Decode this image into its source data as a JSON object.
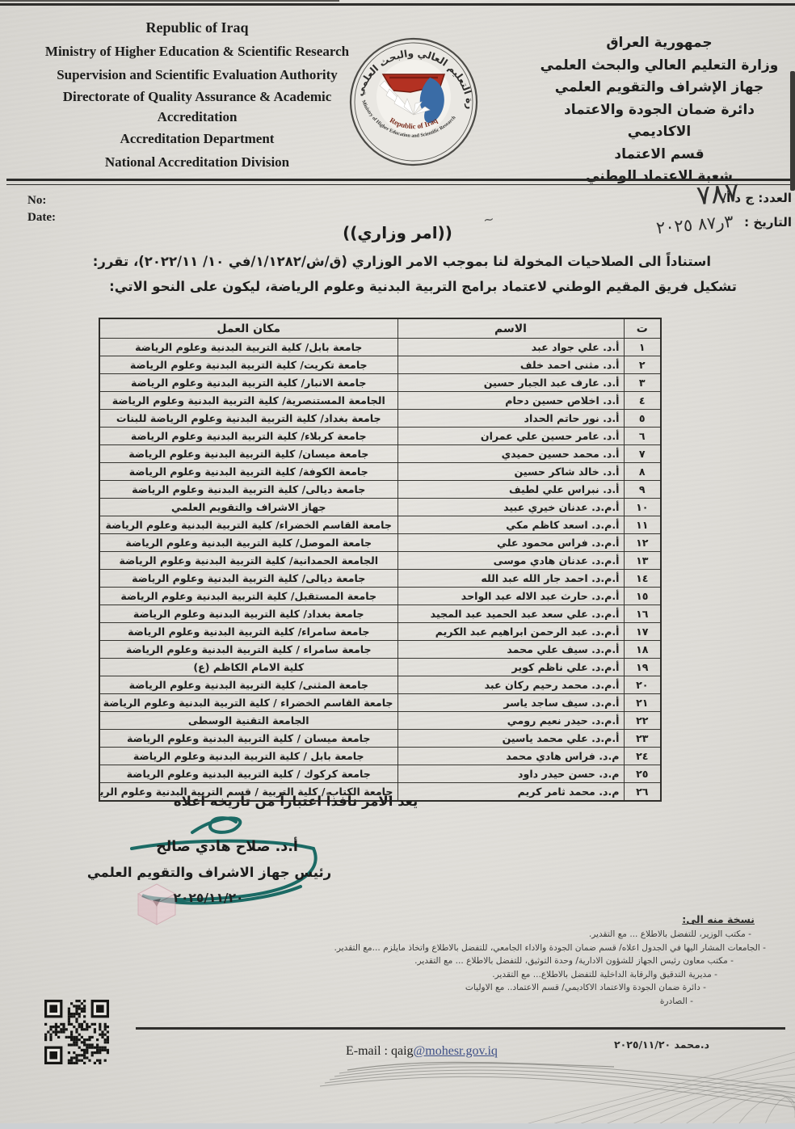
{
  "header": {
    "english_lines": [
      "Republic of Iraq",
      "Ministry of Higher Education & Scientific Research",
      "Supervision and Scientific Evaluation Authority",
      "Directorate of Quality Assurance & Academic",
      "Accreditation",
      "Accreditation Department",
      "National Accreditation Division"
    ],
    "arabic_lines": [
      "جمهورية العراق",
      "وزارة التعليم العالي والبحث العلمي",
      "جهاز الإشراف والتقويم العلمي",
      "دائرة ضمان الجودة والاعتماد الاكاديمي",
      "قسم الاعتماد",
      "شعبة الاعتماد الوطني"
    ],
    "logo": {
      "arabic_ring_text": "وزارة التعليم العالي والبحث العلمي",
      "bottom_text_1": "Republic of Iraq",
      "bottom_text_2": "Ministry of Higher Education and Scientific Research"
    }
  },
  "ref": {
    "no_label": "No:",
    "date_label": "Date:",
    "number_label": "العدد: ج د أ/",
    "number_value": "٧٨٧",
    "date_label_ar": "التاريخ :",
    "date_value": "٣ر٨٧ ٢٠٢٥"
  },
  "title": "((امر وزاري))",
  "title_mark": "~",
  "intro": {
    "line1": "استناداً الى الصلاحيات المخولة لنا بموجب الامر الوزاري (ق/ش/١/١٢٨٢/في ١٠/ ٢٠٢٢/١١)، تقرر:",
    "line2": "تشكيل فريق المقيم الوطني لاعتماد برامج التربية البدنية وعلوم الرياضة، ليكون على النحو الاتي:"
  },
  "table": {
    "headers": {
      "no": "ت",
      "name": "الاسم",
      "workplace": "مكان العمل"
    },
    "rows": [
      {
        "no": "١",
        "name": "أ.د. علي جواد عبد",
        "workplace": "جامعة بابل/ كلية التربية البدنية وعلوم الرياضة"
      },
      {
        "no": "٢",
        "name": "أ.د. مثنى احمد خلف",
        "workplace": "جامعة تكريت/ كلية التربية البدنية وعلوم الرياضة"
      },
      {
        "no": "٣",
        "name": "أ.د. عارف عبد الجبار حسين",
        "workplace": "جامعة الانبار/ كلية التربية البدنية وعلوم الرياضة"
      },
      {
        "no": "٤",
        "name": "أ.د. اخلاص حسين دحام",
        "workplace": "الجامعة المستنصرية/ كلية التربية البدنية وعلوم الرياضة"
      },
      {
        "no": "٥",
        "name": "أ.د. نور حاتم الحداد",
        "workplace": "جامعة بغداد/ كلية التربية البدنية وعلوم الرياضة للبنات"
      },
      {
        "no": "٦",
        "name": "أ.د. عامر حسين علي عمران",
        "workplace": "جامعة كربلاء/ كلية التربية البدنية وعلوم الرياضة"
      },
      {
        "no": "٧",
        "name": "أ.د. محمد حسين حميدي",
        "workplace": "جامعة ميسان/ كلية التربية البدنية وعلوم الرياضة"
      },
      {
        "no": "٨",
        "name": "أ.د. خالد شاكر حسين",
        "workplace": "جامعة الكوفة/ كلية التربية البدنية وعلوم الرياضة"
      },
      {
        "no": "٩",
        "name": "أ.د. نبراس علي لطيف",
        "workplace": "جامعة ديالى/ كلية التربية البدنية وعلوم الرياضة"
      },
      {
        "no": "١٠",
        "name": "أ.م.د. عدنان خيري عبيد",
        "workplace": "جهاز الاشراف والتقويم العلمي"
      },
      {
        "no": "١١",
        "name": "أ.م.د. اسعد كاظم مكي",
        "workplace": "جامعة القاسم الخضراء/ كلية التربية البدنية وعلوم الرياضة"
      },
      {
        "no": "١٢",
        "name": "أ.م.د. فراس محمود علي",
        "workplace": "جامعة الموصل/ كلية التربية البدنية وعلوم الرياضة"
      },
      {
        "no": "١٣",
        "name": "أ.م.د. عدنان هادي موسى",
        "workplace": "الجامعة الحمدانية/ كلية التربية البدنية وعلوم الرياضة"
      },
      {
        "no": "١٤",
        "name": "أ.م.د. احمد جار الله عبد الله",
        "workplace": "جامعة ديالى/ كلية التربية البدنية وعلوم الرياضة"
      },
      {
        "no": "١٥",
        "name": "أ.م.د. حارث عبد الاله عبد الواحد",
        "workplace": "جامعة المستقبل/ كلية التربية البدنية وعلوم الرياضة"
      },
      {
        "no": "١٦",
        "name": "أ.م.د. علي سعد عبد الحميد عبد المجيد",
        "workplace": "جامعة بغداد/ كلية التربية البدنية وعلوم الرياضة"
      },
      {
        "no": "١٧",
        "name": "أ.م.د. عبد الرحمن ابراهيم عبد الكريم",
        "workplace": "جامعة سامراء/ كلية التربية البدنية وعلوم الرياضة"
      },
      {
        "no": "١٨",
        "name": "أ.م.د. سيف علي محمد",
        "workplace": "جامعة سامراء / كلية التربية البدنية وعلوم الرياضة"
      },
      {
        "no": "١٩",
        "name": "أ.م.د. علي ناظم كوير",
        "workplace": "كلية الامام الكاظم (ع)"
      },
      {
        "no": "٢٠",
        "name": "أ.م.د. محمد رحيم ركان عبد",
        "workplace": "جامعة المثنى/ كلية التربية البدنية وعلوم الرياضة"
      },
      {
        "no": "٢١",
        "name": "أ.م.د. سيف ساجد ياسر",
        "workplace": "جامعة  القاسم الخضراء / كلية التربية البدنية وعلوم الرياضة"
      },
      {
        "no": "٢٢",
        "name": "أ.م.د. حيدر نعيم رومي",
        "workplace": "الجامعة التقنية الوسطى"
      },
      {
        "no": "٢٣",
        "name": "أ.م.د. علي محمد ياسين",
        "workplace": "جامعة ميسان / كلية التربية البدنية وعلوم الرياضة"
      },
      {
        "no": "٢٤",
        "name": "م.د. فراس هادي محمد",
        "workplace": "جامعة بابل / كلية التربية البدنية وعلوم الرياضة"
      },
      {
        "no": "٢٥",
        "name": "م.د. حسن حيدر داود",
        "workplace": "جامعة كركوك / كلية التربية البدنية وعلوم الرياضة"
      },
      {
        "no": "٢٦",
        "name": "م.د. محمد ثامر كريم",
        "workplace": "جامعة الكتاب / كلية التربية /  قسم التربية البدنية وعلوم الرياضة"
      }
    ]
  },
  "effective_note": "يعد الامر نافذاً اعتباراً من تاريخه اعلاه",
  "signature": {
    "name": "أ.د. صلاح هادي صالح",
    "role": "رئيس جهاز الاشراف والتقويم العلمي",
    "date": "٢٠٢٥/١١/٢٠",
    "ink_color": "#1b6a64"
  },
  "distribution": {
    "heading": "نسخة منه الى:",
    "items": [
      "مكتب الوزير، للتفضل بالاطلاع ... مع التقدير.",
      "الجامعات المشار اليها في الجدول اعلاه/ قسم ضمان الجودة والاداء الجامعي، للتفضل بالاطلاع واتخاذ مايلزم ...مع التقدير.",
      "مكتب معاون رئيس الجهاز للشؤون الادارية/ وحدة التوثيق، للتفضل بالاطلاع ... مع التقدير.",
      "مديرية التدقيق والرقابة الداخلية للتفضل بالاطلاع... مع التقدير.",
      "دائرة ضمان الجودة والاعتماد الاكاديمي/  قسم الاعتماد.. مع الاوليات",
      "الصادرة"
    ]
  },
  "footer": {
    "clerk_note": "د.محمد   ٢٠٢٥/١١/٢٠",
    "email_label": "E-mail : ",
    "email_user": "qaig",
    "email_domain": "@mohesr.gov.iq"
  }
}
